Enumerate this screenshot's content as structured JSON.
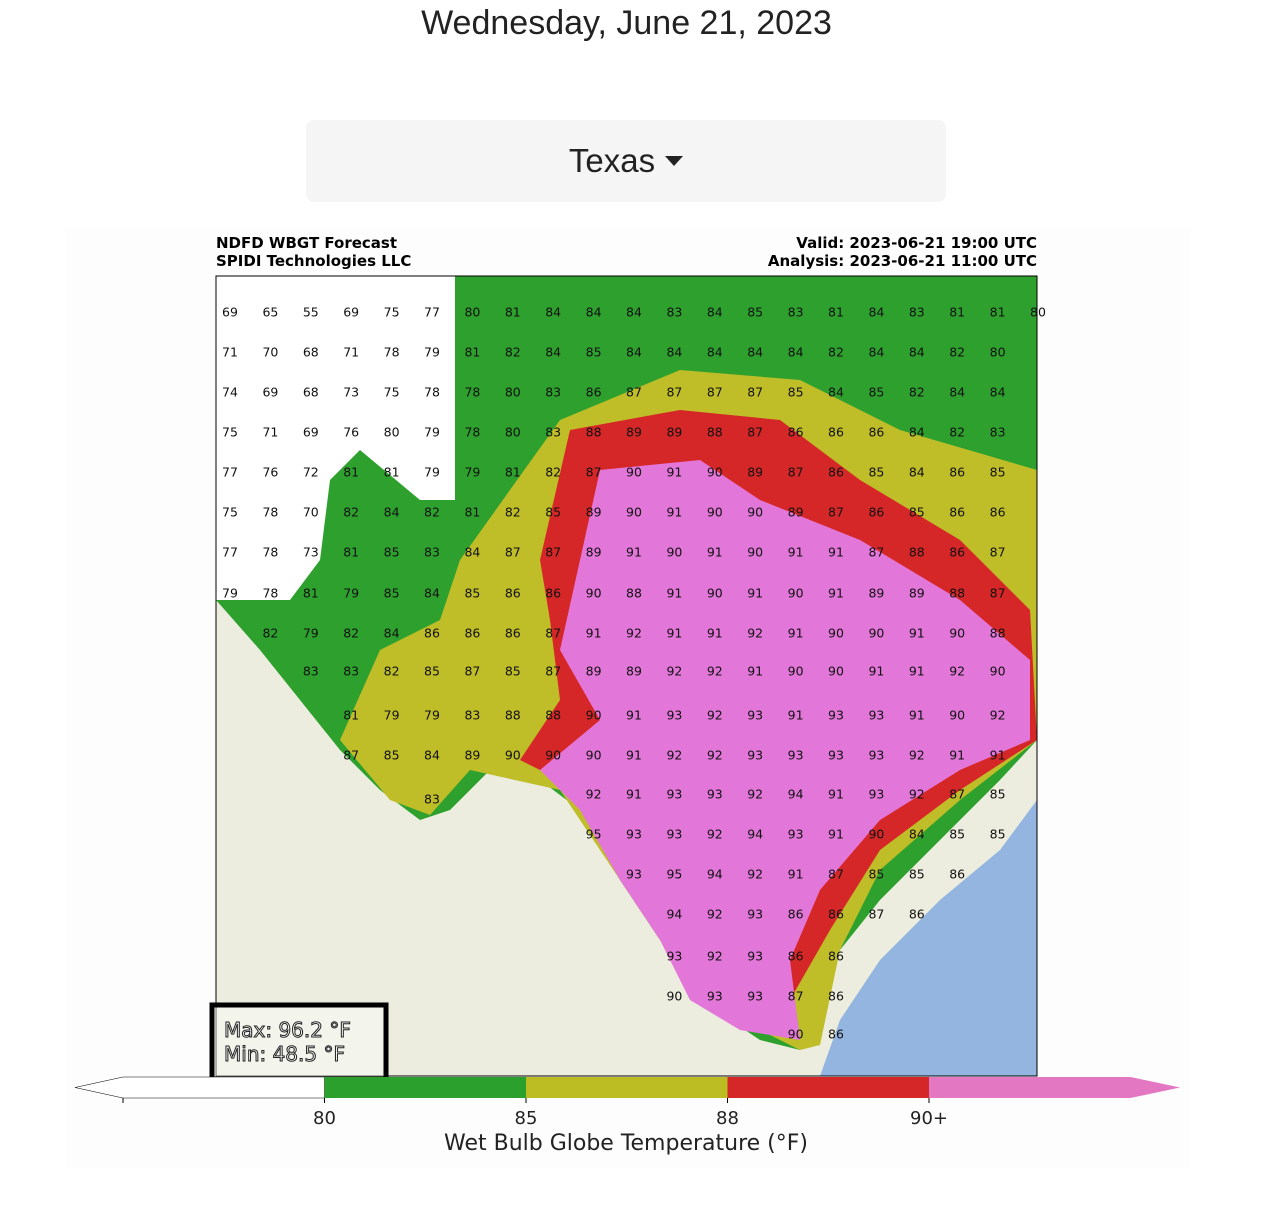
{
  "header": {
    "date": "Wednesday, June 21, 2023"
  },
  "dropdown": {
    "selected": "Texas"
  },
  "map": {
    "title_left": [
      "NDFD WBGT Forecast",
      "SPIDI Technologies LLC"
    ],
    "title_right": [
      "Valid: 2023-06-21 19:00 UTC",
      "Analysis: 2023-06-21 11:00 UTC"
    ],
    "max_text": "Max: 96.2 °F",
    "min_text": "Min: 48.5 °F",
    "station_rows": [
      [
        69,
        65,
        55,
        69,
        75,
        77,
        80,
        81,
        84,
        84,
        84,
        83,
        84,
        85,
        83,
        81,
        84,
        83,
        81,
        81,
        80
      ],
      [
        71,
        70,
        68,
        71,
        78,
        79,
        81,
        82,
        84,
        85,
        84,
        84,
        84,
        84,
        84,
        82,
        84,
        84,
        82,
        80
      ],
      [
        74,
        69,
        68,
        73,
        75,
        78,
        78,
        80,
        83,
        86,
        87,
        87,
        87,
        87,
        85,
        84,
        85,
        82,
        84,
        84
      ],
      [
        75,
        71,
        69,
        76,
        80,
        79,
        78,
        80,
        83,
        88,
        89,
        89,
        88,
        87,
        86,
        86,
        86,
        84,
        82,
        83
      ],
      [
        77,
        76,
        72,
        81,
        81,
        79,
        79,
        81,
        82,
        87,
        90,
        91,
        90,
        89,
        87,
        86,
        85,
        84,
        86,
        85
      ],
      [
        75,
        78,
        70,
        82,
        84,
        82,
        81,
        82,
        85,
        89,
        90,
        91,
        90,
        90,
        89,
        87,
        86,
        85,
        86,
        86
      ],
      [
        77,
        78,
        73,
        81,
        85,
        83,
        84,
        87,
        87,
        89,
        91,
        90,
        91,
        90,
        91,
        91,
        87,
        88,
        86,
        87
      ],
      [
        79,
        78,
        81,
        79,
        85,
        84,
        85,
        86,
        86,
        90,
        88,
        91,
        90,
        91,
        90,
        91,
        89,
        89,
        88,
        87
      ],
      [
        82,
        79,
        82,
        84,
        86,
        86,
        86,
        87,
        91,
        92,
        91,
        91,
        92,
        91,
        90,
        90,
        91,
        90,
        88
      ],
      [
        83,
        83,
        82,
        85,
        87,
        85,
        87,
        89,
        89,
        92,
        92,
        91,
        90,
        90,
        91,
        91,
        92,
        90
      ],
      [
        81,
        79,
        79,
        83,
        88,
        88,
        90,
        91,
        93,
        92,
        93,
        91,
        93,
        93,
        91,
        90,
        92
      ],
      [
        87,
        85,
        84,
        89,
        90,
        90,
        90,
        91,
        92,
        92,
        93,
        93,
        93,
        93,
        92,
        91,
        91
      ],
      [
        83
      ],
      [
        92,
        91,
        93,
        93,
        92,
        94,
        91,
        93,
        92,
        87,
        85
      ],
      [
        95,
        93,
        93,
        92,
        94,
        93,
        91,
        90,
        84,
        85,
        85
      ],
      [
        93,
        95,
        94,
        92,
        91,
        87,
        85,
        85,
        86
      ],
      [
        94,
        92,
        93,
        86,
        86,
        87,
        86
      ],
      [
        93,
        92,
        93,
        86,
        86
      ],
      [
        90,
        93,
        93,
        87,
        86
      ],
      [
        90,
        86
      ]
    ]
  },
  "colorbar": {
    "label": "Wet Bulb Globe Temperature (°F)",
    "ticks": [
      80,
      85,
      88,
      {
        "value": 90,
        "label": "90+"
      }
    ],
    "colors": [
      "#ffffff",
      "#2ca02c",
      "#bcbd22",
      "#d62728",
      "#e377c2"
    ]
  }
}
